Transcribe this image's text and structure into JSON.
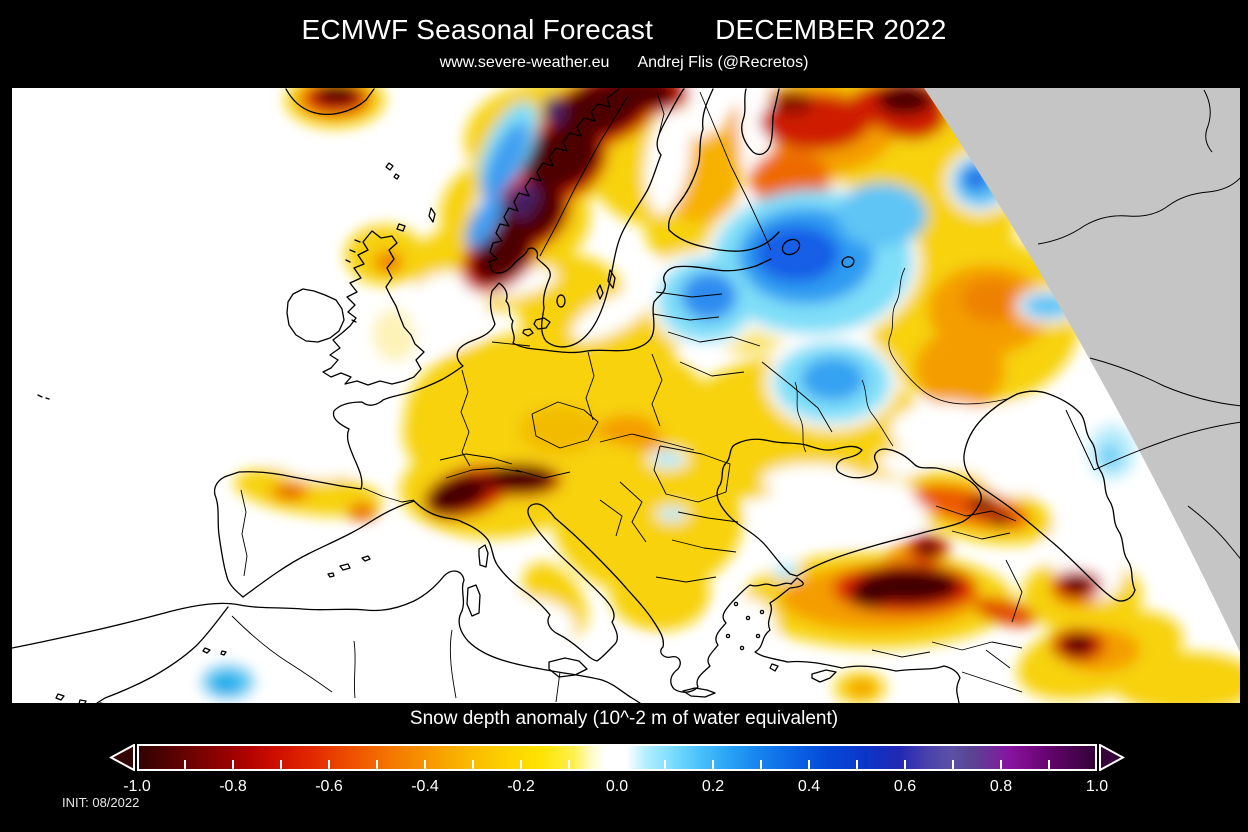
{
  "header": {
    "title_left": "ECMWF Seasonal Forecast",
    "title_right": "DECEMBER 2022",
    "subtitle_site": "www.severe-weather.eu",
    "subtitle_author": "Andrej Flis (@Recretos)"
  },
  "colorbar": {
    "label": "Snow depth anomaly (10^-2 m of water equivalent)",
    "tick_labels": [
      "-1.0",
      "-0.8",
      "-0.6",
      "-0.4",
      "-0.2",
      "0.0",
      "0.2",
      "0.4",
      "0.6",
      "0.8",
      "1.0"
    ],
    "min": -1.0,
    "max": 1.0,
    "negative_side": "dark red to red to orange to yellow (negative snow-depth anomaly)",
    "positive_side": "cyan to blue to indigo to purple (positive snow-depth anomaly)",
    "left_arrow_color": "#330202",
    "right_arrow_color": "#35023a"
  },
  "footer": {
    "init": "INIT: 08/2022"
  },
  "map": {
    "region": "Europe",
    "projection_note": "grey wedge in upper-right corner = outside data domain",
    "sea_color": "#ffffff",
    "no_data_color": "#c5c5c5",
    "coastline_color": "#000000",
    "anomaly_regions": [
      {
        "area": "Scandinavian mountains (Norway/Sweden)",
        "anomaly": "strongly negative, near -1.0"
      },
      {
        "area": "Norwegian NW coast spots",
        "anomaly": "positive, +0.4 to +0.8 (blue/purple spots)"
      },
      {
        "area": "South Iceland",
        "anomaly": "strongly negative, near -1.0"
      },
      {
        "area": "North Finland / Kola peninsula",
        "anomaly": "negative, -0.4 to -0.9"
      },
      {
        "area": "NW Russia / Gulf of Finland / Baltic states",
        "anomaly": "positive, +0.2 to +0.4"
      },
      {
        "area": "Central and Eastern Europe",
        "anomaly": "weakly negative, -0.1 to -0.3"
      },
      {
        "area": "Alps",
        "anomaly": "strongly negative, -0.8 to -1.0"
      },
      {
        "area": "Scotland",
        "anomaly": "negative, -0.2 to -0.5"
      },
      {
        "area": "Northern Spain / Pyrenees",
        "anomaly": "negative, -0.2 to -0.4"
      },
      {
        "area": "Eastern Turkey / Caucasus / Zagros",
        "anomaly": "strongly negative, -0.8 to -1.0"
      },
      {
        "area": "Algeria (Sahara spot)",
        "anomaly": "positive, +0.1 to +0.2"
      },
      {
        "area": "Volga region near Caspian",
        "anomaly": "weakly positive, +0.1"
      }
    ]
  }
}
